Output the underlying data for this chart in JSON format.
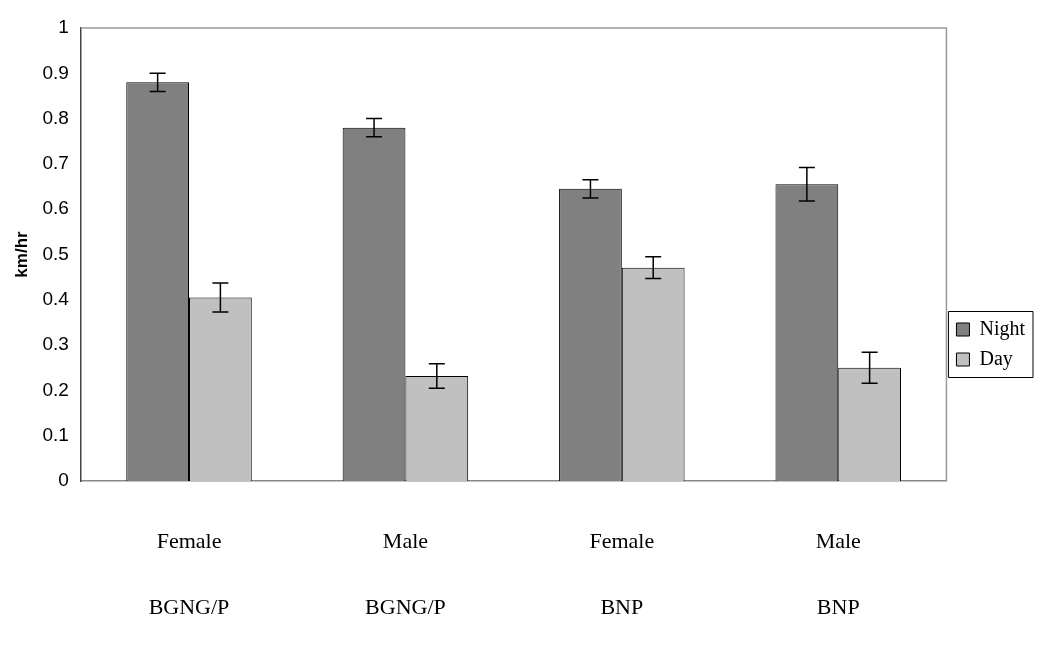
{
  "chart_data": {
    "type": "bar",
    "ylabel": "km/hr",
    "categories": [
      "Female\nBGNG/P",
      "Male\nBGNG/P",
      "Female\nBNP",
      "Male\nBNP"
    ],
    "series": [
      {
        "name": "Night",
        "color": "#808080",
        "values": [
          0.88,
          0.78,
          0.645,
          0.655
        ],
        "errors": [
          0.02,
          0.02,
          0.02,
          0.037
        ]
      },
      {
        "name": "Day",
        "color": "#c0c0c0",
        "values": [
          0.405,
          0.232,
          0.471,
          0.25
        ],
        "errors": [
          0.032,
          0.027,
          0.024,
          0.034
        ]
      }
    ],
    "ylim": [
      0,
      1
    ],
    "yticks": [
      0,
      0.1,
      0.2,
      0.3,
      0.4,
      0.5,
      0.6,
      0.7,
      0.8,
      0.9,
      1
    ],
    "grid": false,
    "legend": "right"
  }
}
